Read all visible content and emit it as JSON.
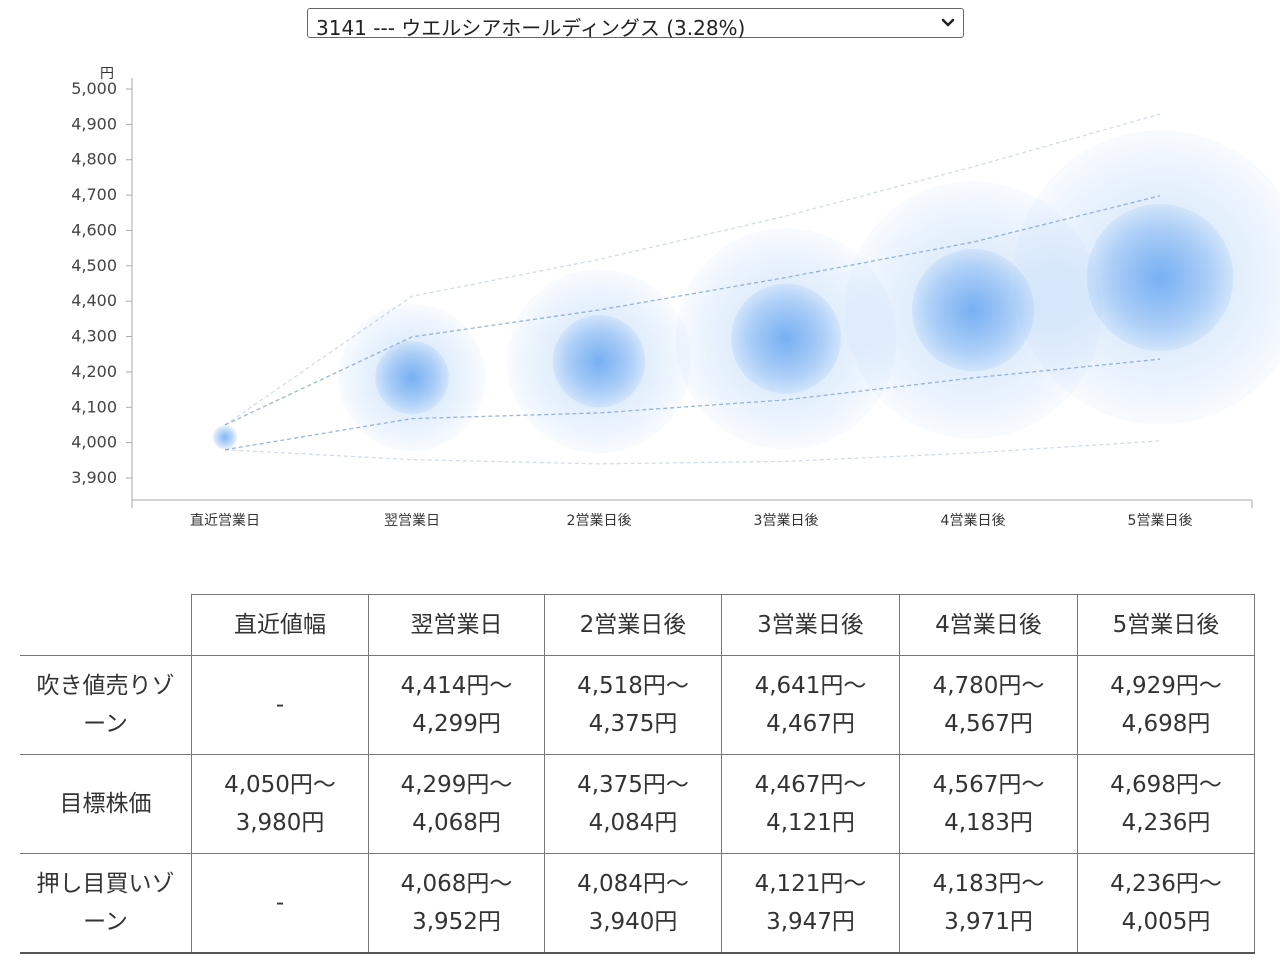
{
  "selector": {
    "value": "3141 --- ウエルシアホールディングス (3.28%)",
    "arrow_icon": "chevron-down-icon"
  },
  "chart_data": {
    "type": "bubble-forecast",
    "ylabel": "円",
    "ylim": [
      3850,
      5000
    ],
    "yticks": [
      3900,
      4000,
      4100,
      4200,
      4300,
      4400,
      4500,
      4600,
      4700,
      4800,
      4900,
      5000
    ],
    "categories": [
      "直近営業日",
      "翌営業日",
      "2営業日後",
      "3営業日後",
      "4営業日後",
      "5営業日後"
    ],
    "center": [
      4015,
      4184,
      4230,
      4294,
      4375,
      4467
    ],
    "upper_outer": [
      4050,
      4414,
      4518,
      4641,
      4780,
      4929
    ],
    "upper_inner": [
      4050,
      4299,
      4375,
      4467,
      4567,
      4698
    ],
    "lower_inner": [
      3980,
      4068,
      4084,
      4121,
      4183,
      4236
    ],
    "lower_outer": [
      3980,
      3952,
      3940,
      3947,
      3971,
      4005
    ],
    "colors": {
      "bubble": "#5b9ff0",
      "guide": "#6f97c8",
      "axis": "#aaaaaa"
    }
  },
  "table": {
    "headers": [
      "直近値幅",
      "翌営業日",
      "2営業日後",
      "3営業日後",
      "4営業日後",
      "5営業日後"
    ],
    "rows": [
      {
        "label": [
          "吹き値売りゾ",
          "ーン"
        ],
        "cells": [
          [
            "-",
            ""
          ],
          [
            "4,414円〜",
            "4,299円"
          ],
          [
            "4,518円〜",
            "4,375円"
          ],
          [
            "4,641円〜",
            "4,467円"
          ],
          [
            "4,780円〜",
            "4,567円"
          ],
          [
            "4,929円〜",
            "4,698円"
          ]
        ]
      },
      {
        "label": [
          "目標株価",
          ""
        ],
        "cells": [
          [
            "4,050円〜",
            "3,980円"
          ],
          [
            "4,299円〜",
            "4,068円"
          ],
          [
            "4,375円〜",
            "4,084円"
          ],
          [
            "4,467円〜",
            "4,121円"
          ],
          [
            "4,567円〜",
            "4,183円"
          ],
          [
            "4,698円〜",
            "4,236円"
          ]
        ]
      },
      {
        "label": [
          "押し目買いゾ",
          "ーン"
        ],
        "cells": [
          [
            "-",
            ""
          ],
          [
            "4,068円〜",
            "3,952円"
          ],
          [
            "4,084円〜",
            "3,940円"
          ],
          [
            "4,121円〜",
            "3,947円"
          ],
          [
            "4,183円〜",
            "3,971円"
          ],
          [
            "4,236円〜",
            "4,005円"
          ]
        ]
      }
    ]
  }
}
